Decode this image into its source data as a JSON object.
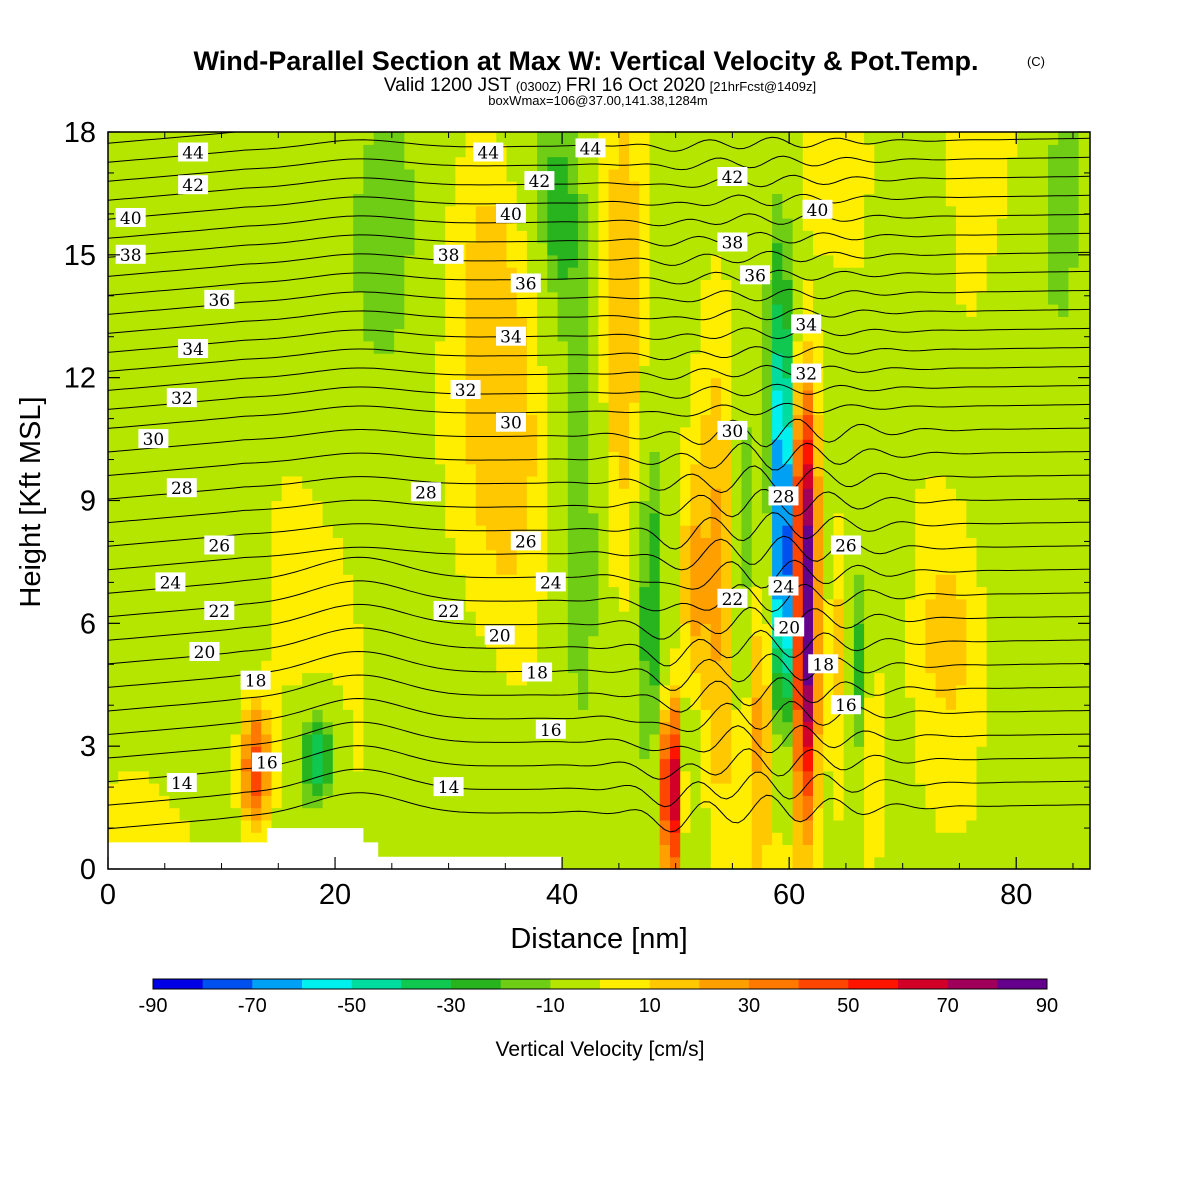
{
  "chart_data": {
    "type": "heatmap",
    "title": "Wind-Parallel Section at Max W: Vertical Velocity & Pot.Temp.",
    "title_mark": "(C)",
    "subtitle": {
      "valid": "Valid 1200 JST",
      "utc": "(0300Z)",
      "date": "FRI 16 Oct 2020",
      "fcst": "[21hrFcst@1409z]"
    },
    "box_info": "boxWmax=106@37.00,141.38,1284m",
    "xlabel": "Distance [nm]",
    "ylabel": "Height [Kft MSL]",
    "xlim": [
      0,
      86.5
    ],
    "ylim": [
      0,
      18
    ],
    "x_ticks": [
      0,
      20,
      40,
      60,
      80
    ],
    "y_ticks": [
      0,
      3,
      6,
      9,
      12,
      15,
      18
    ],
    "colorbar": {
      "label": "Vertical Velocity [cm/s]",
      "ticks": [
        -90,
        -70,
        -50,
        -30,
        -10,
        10,
        30,
        50,
        70,
        90
      ],
      "bins": [
        -90,
        -80,
        -70,
        -60,
        -50,
        -40,
        -30,
        -20,
        -10,
        10,
        20,
        30,
        40,
        50,
        60,
        70,
        80,
        90
      ],
      "colors": [
        "#0000e6",
        "#0050f0",
        "#00a0f5",
        "#00f0f0",
        "#00dca0",
        "#10c850",
        "#28b41e",
        "#6ecd14",
        "#b4e600",
        "#ffee00",
        "#ffc800",
        "#ffa000",
        "#ff7800",
        "#ff4600",
        "#ff1400",
        "#d20028",
        "#a0005a",
        "#64008c"
      ]
    },
    "terrain": [
      [
        0,
        0.65
      ],
      [
        14,
        0.65
      ],
      [
        14,
        1.0
      ],
      [
        22.5,
        1.0
      ],
      [
        22.5,
        0.65
      ],
      [
        23.8,
        0.65
      ],
      [
        23.8,
        0.3
      ],
      [
        40,
        0.3
      ],
      [
        40,
        0
      ]
    ],
    "contour_levels": [
      13,
      14,
      15,
      16,
      17,
      18,
      19,
      20,
      21,
      22,
      23,
      24,
      25,
      26,
      27,
      28,
      29,
      30,
      31,
      32,
      33,
      34,
      35,
      36,
      37,
      38,
      39,
      40,
      41,
      42,
      43,
      44,
      45
    ],
    "contour_labels": [
      {
        "text": "44",
        "x": 7.5,
        "y": 17.5
      },
      {
        "text": "44",
        "x": 33.5,
        "y": 17.5
      },
      {
        "text": "44",
        "x": 42.5,
        "y": 17.6
      },
      {
        "text": "42",
        "x": 7.5,
        "y": 16.7
      },
      {
        "text": "42",
        "x": 38.0,
        "y": 16.8
      },
      {
        "text": "42",
        "x": 55.0,
        "y": 16.9
      },
      {
        "text": "40",
        "x": 2.0,
        "y": 15.9
      },
      {
        "text": "40",
        "x": 35.5,
        "y": 16.0
      },
      {
        "text": "40",
        "x": 62.5,
        "y": 16.1
      },
      {
        "text": "38",
        "x": 2.0,
        "y": 15.0
      },
      {
        "text": "38",
        "x": 30.0,
        "y": 15.0
      },
      {
        "text": "38",
        "x": 55.0,
        "y": 15.3
      },
      {
        "text": "36",
        "x": 9.8,
        "y": 13.9
      },
      {
        "text": "36",
        "x": 36.8,
        "y": 14.3
      },
      {
        "text": "36",
        "x": 57.0,
        "y": 14.5
      },
      {
        "text": "34",
        "x": 7.5,
        "y": 12.7
      },
      {
        "text": "34",
        "x": 35.5,
        "y": 13.0
      },
      {
        "text": "34",
        "x": 61.5,
        "y": 13.3
      },
      {
        "text": "32",
        "x": 6.5,
        "y": 11.5
      },
      {
        "text": "32",
        "x": 31.5,
        "y": 11.7
      },
      {
        "text": "32",
        "x": 61.5,
        "y": 12.1
      },
      {
        "text": "30",
        "x": 4.0,
        "y": 10.5
      },
      {
        "text": "30",
        "x": 35.5,
        "y": 10.9
      },
      {
        "text": "30",
        "x": 55.0,
        "y": 10.7
      },
      {
        "text": "28",
        "x": 6.5,
        "y": 9.3
      },
      {
        "text": "28",
        "x": 28.0,
        "y": 9.2
      },
      {
        "text": "28",
        "x": 59.5,
        "y": 9.1
      },
      {
        "text": "26",
        "x": 9.8,
        "y": 7.9
      },
      {
        "text": "26",
        "x": 36.8,
        "y": 8.0
      },
      {
        "text": "26",
        "x": 65.0,
        "y": 7.9
      },
      {
        "text": "24",
        "x": 5.5,
        "y": 7.0
      },
      {
        "text": "24",
        "x": 39.0,
        "y": 7.0
      },
      {
        "text": "24",
        "x": 59.5,
        "y": 6.9
      },
      {
        "text": "22",
        "x": 9.8,
        "y": 6.3
      },
      {
        "text": "22",
        "x": 30.0,
        "y": 6.3
      },
      {
        "text": "22",
        "x": 55.0,
        "y": 6.6
      },
      {
        "text": "20",
        "x": 8.5,
        "y": 5.3
      },
      {
        "text": "20",
        "x": 34.5,
        "y": 5.7
      },
      {
        "text": "20",
        "x": 60.0,
        "y": 5.9
      },
      {
        "text": "18",
        "x": 13.0,
        "y": 4.6
      },
      {
        "text": "18",
        "x": 37.8,
        "y": 4.8
      },
      {
        "text": "18",
        "x": 63.0,
        "y": 5.0
      },
      {
        "text": "16",
        "x": 14.0,
        "y": 2.6
      },
      {
        "text": "16",
        "x": 39.0,
        "y": 3.4
      },
      {
        "text": "16",
        "x": 65.0,
        "y": 4.0
      },
      {
        "text": "14",
        "x": 6.5,
        "y": 2.1
      },
      {
        "text": "14",
        "x": 30.0,
        "y": 2.0
      }
    ],
    "updrafts": [
      {
        "x": 13.0,
        "y": 2.5,
        "sx": 1.0,
        "sy": 1.1,
        "w": 55
      },
      {
        "x": 49.7,
        "y": 2.0,
        "sx": 0.75,
        "sy": 1.6,
        "w": 92
      },
      {
        "x": 61.5,
        "y": 5.3,
        "sx": 0.75,
        "sy": 2.8,
        "w": 88
      },
      {
        "x": 61.3,
        "y": 9.5,
        "sx": 0.9,
        "sy": 2.2,
        "w": 60
      },
      {
        "x": 54.0,
        "y": 7.5,
        "sx": 1.3,
        "sy": 4.0,
        "w": 28
      },
      {
        "x": 45.0,
        "y": 10.5,
        "sx": 1.8,
        "sy": 6.0,
        "w": 22
      },
      {
        "x": 35.5,
        "y": 11.5,
        "sx": 2.5,
        "sy": 3.5,
        "w": 16
      },
      {
        "x": 33.5,
        "y": 16.0,
        "sx": 2.0,
        "sy": 2.5,
        "w": 14
      },
      {
        "x": 76.0,
        "y": 15.0,
        "sx": 2.5,
        "sy": 4.0,
        "w": 18
      },
      {
        "x": 67.0,
        "y": 2.8,
        "sx": 1.0,
        "sy": 2.5,
        "w": 25
      },
      {
        "x": 64.3,
        "y": 5.5,
        "sx": 0.6,
        "sy": 2.5,
        "w": 22
      },
      {
        "x": 57.3,
        "y": 4.2,
        "sx": 0.8,
        "sy": 2.5,
        "w": 24
      },
      {
        "x": 51.5,
        "y": 6.5,
        "sx": 0.8,
        "sy": 2.2,
        "w": 26
      },
      {
        "x": 75.0,
        "y": 6.0,
        "sx": 2.5,
        "sy": 2.0,
        "w": 12
      }
    ],
    "downdrafts": [
      {
        "x": 18.5,
        "y": 2.8,
        "sx": 1.2,
        "sy": 1.0,
        "w": -48
      },
      {
        "x": 59.5,
        "y": 7.5,
        "sx": 0.55,
        "sy": 3.0,
        "w": -92
      },
      {
        "x": 59.2,
        "y": 12.5,
        "sx": 0.9,
        "sy": 4.0,
        "w": -28
      },
      {
        "x": 47.8,
        "y": 7.0,
        "sx": 0.9,
        "sy": 3.5,
        "w": -32
      },
      {
        "x": 55.8,
        "y": 7.5,
        "sx": 0.8,
        "sy": 3.0,
        "w": -32
      },
      {
        "x": 66.2,
        "y": 4.5,
        "sx": 0.6,
        "sy": 2.0,
        "w": -40
      },
      {
        "x": 51.0,
        "y": 2.5,
        "sx": 0.8,
        "sy": 1.8,
        "w": -24
      },
      {
        "x": 41.8,
        "y": 10.0,
        "sx": 1.5,
        "sy": 6.0,
        "w": -24
      },
      {
        "x": 39.5,
        "y": 16.0,
        "sx": 1.3,
        "sy": 1.8,
        "w": -24
      },
      {
        "x": 25.0,
        "y": 16.5,
        "sx": 2.0,
        "sy": 3.0,
        "w": -22
      },
      {
        "x": 49.5,
        "y": 15.5,
        "sx": 1.5,
        "sy": 3.5,
        "w": -18
      },
      {
        "x": 84.0,
        "y": 16.0,
        "sx": 1.8,
        "sy": 3.5,
        "w": -20
      },
      {
        "x": 8.0,
        "y": 16.0,
        "sx": 3.5,
        "sy": 2.5,
        "w": -14
      },
      {
        "x": 69.0,
        "y": 6.0,
        "sx": 1.2,
        "sy": 2.5,
        "w": -14
      },
      {
        "x": 5.0,
        "y": 5.0,
        "sx": 3.5,
        "sy": 2.0,
        "w": -12
      },
      {
        "x": 81.0,
        "y": 8.0,
        "sx": 4.0,
        "sy": 4.0,
        "w": -12
      }
    ]
  }
}
